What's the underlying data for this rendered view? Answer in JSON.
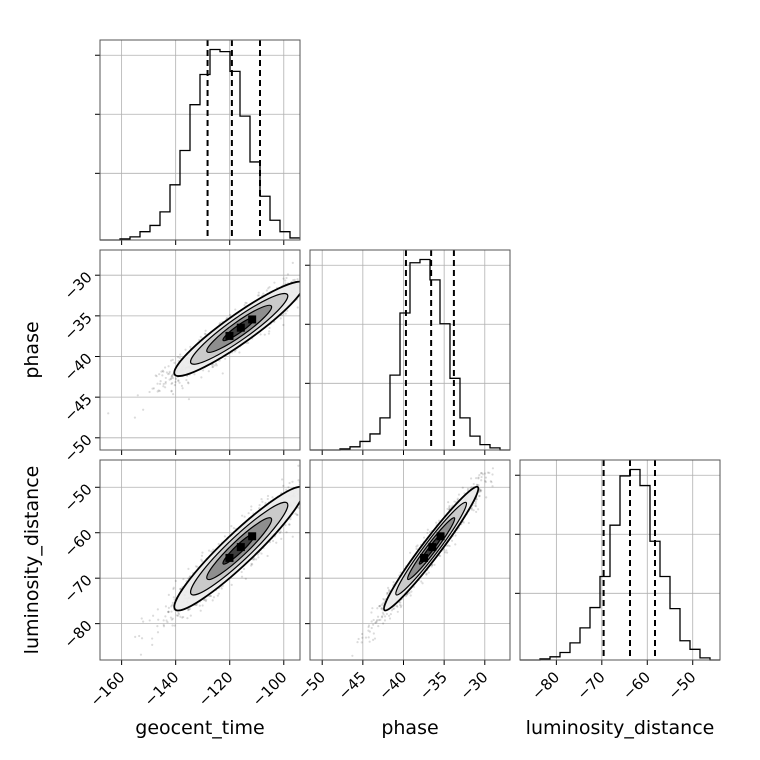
{
  "chart_data": {
    "type": "corner",
    "parameters": [
      "geocent_time",
      "phase",
      "luminosity_distance"
    ],
    "grid": true,
    "ranges": {
      "geocent_time": [
        -168,
        -94
      ],
      "phase": [
        -51.5,
        -26.9
      ],
      "luminosity_distance": [
        -88,
        -44
      ]
    },
    "ticks": {
      "geocent_time": [
        -160,
        -140,
        -120,
        -100
      ],
      "phase": [
        -50,
        -45,
        -40,
        -35,
        -30
      ],
      "luminosity_distance": [
        -80,
        -70,
        -60,
        -50
      ]
    },
    "tick_labels": {
      "geocent_time": [
        "−160",
        "−140",
        "−120",
        "−100"
      ],
      "phase": [
        "−50",
        "−45",
        "−40",
        "−35",
        "−30"
      ],
      "luminosity_distance": [
        "−80",
        "−70",
        "−60",
        "−50"
      ]
    },
    "quantiles": {
      "geocent_time": [
        -128.2,
        -119.2,
        -108.8
      ],
      "phase": [
        -39.7,
        -36.6,
        -33.8
      ],
      "luminosity_distance": [
        -69.6,
        -63.8,
        -58.3
      ]
    },
    "histograms": {
      "geocent_time": {
        "edges": [
          -168,
          -164.3,
          -160.6,
          -156.9,
          -153.2,
          -149.5,
          -145.8,
          -142.1,
          -138.4,
          -134.7,
          -131,
          -127.3,
          -123.6,
          -119.9,
          -116.2,
          -112.5,
          -108.8,
          -105.1,
          -101.4,
          -97.7,
          -94
        ],
        "counts": [
          0,
          0,
          1,
          3,
          8,
          14,
          27,
          53,
          86,
          130,
          159,
          183,
          181,
          162,
          119,
          75,
          42,
          19,
          8,
          2
        ]
      },
      "phase": {
        "edges": [
          -51.5,
          -50.27,
          -49.04,
          -47.81,
          -46.58,
          -45.35,
          -44.12,
          -42.89,
          -41.66,
          -40.43,
          -39.2,
          -37.97,
          -36.74,
          -35.51,
          -34.28,
          -33.05,
          -31.82,
          -30.59,
          -29.36,
          -28.13,
          -26.9
        ],
        "counts": [
          0,
          0,
          0,
          1,
          3,
          8,
          15,
          30,
          70,
          128,
          175,
          178,
          159,
          118,
          67,
          30,
          13,
          5,
          2,
          0
        ]
      },
      "luminosity_distance": {
        "edges": [
          -88,
          -85.8,
          -83.6,
          -81.4,
          -79.2,
          -77,
          -74.8,
          -72.6,
          -70.4,
          -68.2,
          -66,
          -63.8,
          -61.6,
          -59.4,
          -57.2,
          -55,
          -52.8,
          -50.6,
          -48.4,
          -46.2,
          -44
        ],
        "counts": [
          0,
          0,
          1,
          3,
          7,
          16,
          30,
          49,
          78,
          126,
          172,
          178,
          163,
          111,
          78,
          48,
          18,
          10,
          2,
          0
        ]
      }
    },
    "joint_2d": [
      {
        "x": "geocent_time",
        "y": "phase",
        "mean": [
          -116.5,
          -36.6
        ],
        "sd": [
          12,
          2.9
        ],
        "rho": 0.93
      },
      {
        "x": "geocent_time",
        "y": "luminosity_distance",
        "mean": [
          -116.5,
          -63.5
        ],
        "sd": [
          12,
          6.8
        ],
        "rho": 0.94
      },
      {
        "x": "phase",
        "y": "luminosity_distance",
        "mean": [
          -36.6,
          -63.5
        ],
        "sd": [
          2.9,
          6.8
        ],
        "rho": 0.97
      }
    ],
    "contour_levels": [
      0.118,
      0.393,
      0.675,
      0.865
    ],
    "panel_labels": {
      "x": [
        "geocent_time",
        "phase",
        "luminosity_distance"
      ],
      "y": [
        "phase",
        "luminosity_distance"
      ]
    }
  }
}
